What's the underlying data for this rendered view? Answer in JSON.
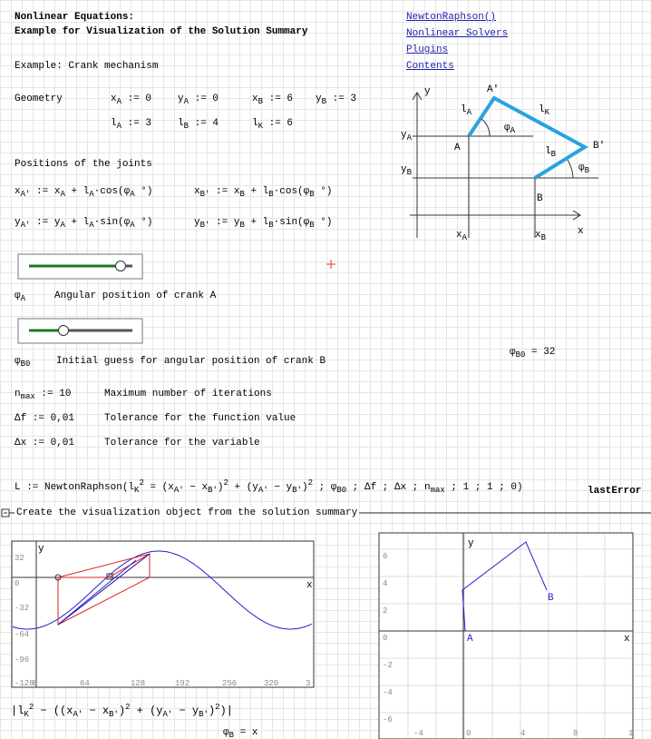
{
  "header": {
    "title": [
      "Nonlinear Equations:",
      "Example for Visualization of the Solution Summary"
    ],
    "links": [
      "NewtonRaphson()",
      "Nonlinear Solvers",
      "Plugins",
      "Contents"
    ]
  },
  "example": "Example: Crank mechanism",
  "geometry": {
    "label": "Geometry",
    "defs": [
      [
        {
          "t": "x",
          "sub": "A"
        },
        {
          "t": " := 0"
        }
      ],
      [
        {
          "t": "y",
          "sub": "A"
        },
        {
          "t": " := 0"
        }
      ],
      [
        {
          "t": "x",
          "sub": "B"
        },
        {
          "t": " := 6"
        }
      ],
      [
        {
          "t": "y",
          "sub": "B"
        },
        {
          "t": " := 3"
        }
      ],
      [
        {
          "t": "l",
          "sub": "A"
        },
        {
          "t": " := 3"
        }
      ],
      [
        {
          "t": "l",
          "sub": "B"
        },
        {
          "t": " := 4"
        }
      ],
      [
        {
          "t": "l",
          "sub": "K"
        },
        {
          "t": " := 6"
        }
      ]
    ]
  },
  "joints": {
    "label": "Positions of the joints",
    "formulas": [
      [
        {
          "t": "x",
          "sub": "A'"
        },
        {
          "t": " := x",
          "sub": "A"
        },
        {
          "t": " + l",
          "sub": "A"
        },
        {
          "t": "·cos(φ",
          "sub": "A"
        },
        {
          "t": " °)"
        }
      ],
      [
        {
          "t": "x",
          "sub": "B'"
        },
        {
          "t": " := x",
          "sub": "B"
        },
        {
          "t": " + l",
          "sub": "B"
        },
        {
          "t": "·cos(φ",
          "sub": "B"
        },
        {
          "t": " °)"
        }
      ],
      [
        {
          "t": "y",
          "sub": "A'"
        },
        {
          "t": " := y",
          "sub": "A"
        },
        {
          "t": " + l",
          "sub": "A"
        },
        {
          "t": "·sin(φ",
          "sub": "A"
        },
        {
          "t": " °)"
        }
      ],
      [
        {
          "t": "y",
          "sub": "B'"
        },
        {
          "t": " := y",
          "sub": "B"
        },
        {
          "t": " + l",
          "sub": "B"
        },
        {
          "t": "·sin(φ",
          "sub": "B"
        },
        {
          "t": " °)"
        }
      ]
    ]
  },
  "sliders": [
    {
      "symbol": [
        {
          "t": "φ",
          "sub": "A"
        }
      ],
      "text": "Angular position of crank A"
    },
    {
      "symbol": [
        {
          "t": "φ",
          "sub": "B0"
        }
      ],
      "text": "Initial guess for angular position of crank B"
    }
  ],
  "result": [
    {
      "t": "φ",
      "sub": "B0"
    },
    {
      "t": " = 32"
    }
  ],
  "parameters": [
    {
      "formula": [
        {
          "t": "n",
          "sub": "max"
        },
        {
          "t": " := 10"
        }
      ],
      "text": "Maximum number of iterations"
    },
    {
      "formula": [
        {
          "t": "Δf := 0,01"
        }
      ],
      "text": "Tolerance for the function value"
    },
    {
      "formula": [
        {
          "t": "Δx := 0,01"
        }
      ],
      "text": "Tolerance for the variable"
    }
  ],
  "solver": [
    {
      "t": "L := NewtonRaphson(l",
      "sub": "K",
      "sup": "2"
    },
    {
      "t": " = (x",
      "sub": "A'"
    },
    {
      "t": " − x",
      "sub": "B'"
    },
    {
      "t": ")",
      "sup": "2"
    },
    {
      "t": " + (y",
      "sub": "A'"
    },
    {
      "t": " − y",
      "sub": "B'"
    },
    {
      "t": ")",
      "sup": "2"
    },
    {
      "t": " ; φ",
      "sub": "B0"
    },
    {
      "t": " ; Δf ; Δx ; n",
      "sub": "max"
    },
    {
      "t": " ; 1 ; 1 ; 0)"
    }
  ],
  "last_error": "lastError",
  "region": "Create the visualization object from the solution summary",
  "diagram": {
    "labels": [
      [
        {
          "t": "y"
        }
      ],
      [
        {
          "t": "A'"
        }
      ],
      [
        {
          "t": "l",
          "sub": "A"
        }
      ],
      [
        {
          "t": "l",
          "sub": "K"
        }
      ],
      [
        {
          "t": "φ",
          "sub": "A"
        }
      ],
      [
        {
          "t": "y",
          "sub": "A"
        }
      ],
      [
        {
          "t": "A"
        }
      ],
      [
        {
          "t": "l",
          "sub": "B"
        }
      ],
      [
        {
          "t": "B'"
        }
      ],
      [
        {
          "t": "y",
          "sub": "B"
        }
      ],
      [
        {
          "t": "φ",
          "sub": "B"
        }
      ],
      [
        {
          "t": "B"
        }
      ],
      [
        {
          "t": "x",
          "sub": "A"
        }
      ],
      [
        {
          "t": "x",
          "sub": "B"
        }
      ],
      [
        {
          "t": "x"
        }
      ]
    ]
  },
  "plot_left": {
    "x_label": "x",
    "y_label": "y",
    "xticks": [
      "0",
      "64",
      "128",
      "192",
      "256",
      "320",
      "3"
    ],
    "yticks": [
      "32",
      "0",
      "-32",
      "-64",
      "-96",
      "-128"
    ]
  },
  "plot_right": {
    "x_label": "x",
    "y_label": "y",
    "point_labels": [
      "A",
      "B"
    ],
    "xticks": [
      "-4",
      "0",
      "4",
      "8",
      "1"
    ],
    "yticks": [
      "6",
      "4",
      "2",
      "0",
      "-2",
      "-4",
      "-6"
    ]
  },
  "check": [
    {
      "t": "|l",
      "sub": "K",
      "sup": "2"
    },
    {
      "t": " − ((x",
      "sub": "A'"
    },
    {
      "t": " − x",
      "sub": "B'"
    },
    {
      "t": ")",
      "sup": "2"
    },
    {
      "t": " + (y",
      "sub": "A'"
    },
    {
      "t": " − y",
      "sub": "B'"
    },
    {
      "t": ")",
      "sup": "2"
    },
    {
      "t": ")|"
    }
  ],
  "check_result": [
    {
      "t": "φ",
      "sub": "B"
    },
    {
      "t": " = x"
    }
  ]
}
